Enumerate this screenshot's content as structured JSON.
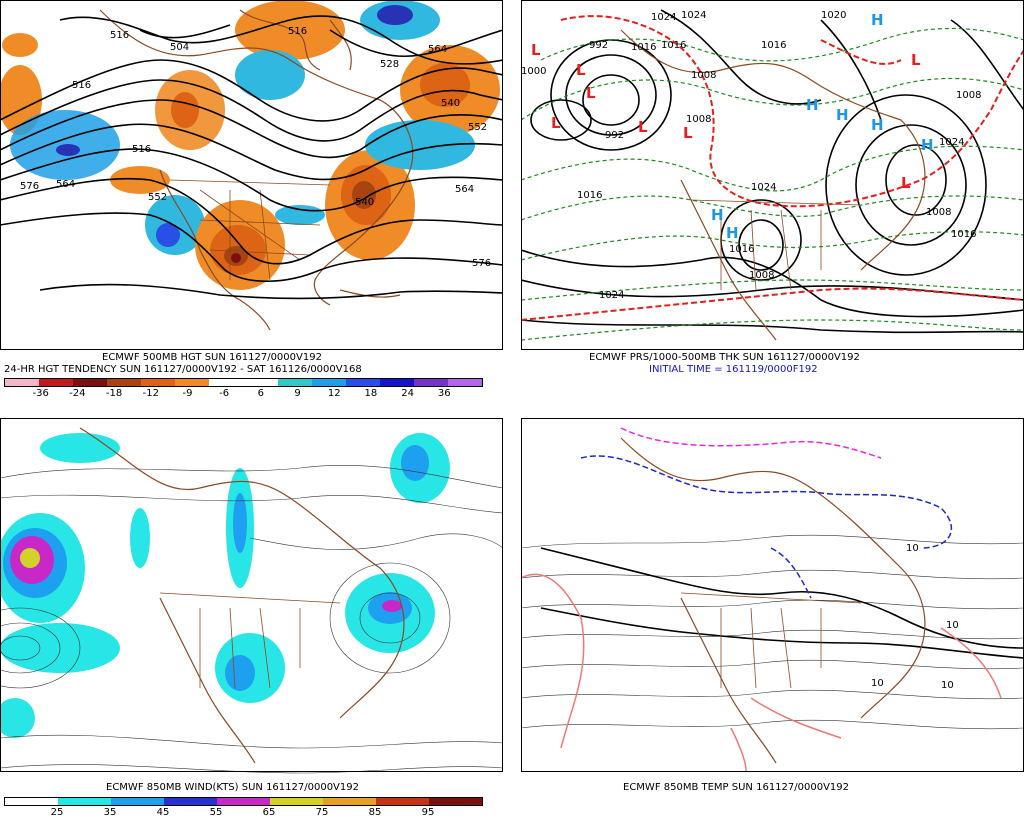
{
  "panels": {
    "hgt": {
      "caption_line1": "ECMWF 500MB HGT SUN 161127/0000V192",
      "caption_line2": "24-HR HGT TENDENCY SUN 161127/0000V192 - SAT 161126/0000V168",
      "contour_labels": [
        "516",
        "504",
        "516",
        "516",
        "528",
        "564",
        "540",
        "552",
        "516",
        "576",
        "564",
        "552",
        "540",
        "564",
        "576"
      ],
      "colorbar": {
        "colors": [
          "#f7b6c8",
          "#c01a1a",
          "#7a1010",
          "#a84410",
          "#dc6414",
          "#f08c28",
          "#ffffff",
          "#ffffff",
          "#30c8c8",
          "#1ea0e6",
          "#2850e6",
          "#1414c8",
          "#7832c8",
          "#b464e6"
        ],
        "labels": [
          "-36",
          "-24",
          "-18",
          "-12",
          "-9",
          "-6",
          "6",
          "9",
          "12",
          "18",
          "24",
          "36"
        ]
      }
    },
    "prs": {
      "caption_line1": "ECMWF PRS/1000-500MB THK SUN 161127/0000V192",
      "caption_line2": "INITIAL TIME = 161119/0000F192",
      "isobar_labels": [
        "1024",
        "1016",
        "992",
        "1008",
        "1000",
        "992",
        "1016",
        "1024",
        "1016",
        "1024",
        "1008",
        "1016",
        "1024",
        "1024",
        "1008",
        "1016",
        "1008",
        "1008",
        "1016",
        "1020"
      ],
      "low_symbol": "L",
      "high_symbol": "H"
    },
    "wind": {
      "caption": "ECMWF 850MB WIND(KTS) SUN 161127/0000V192",
      "colorbar": {
        "colors": [
          "#ffffff",
          "#28e6e6",
          "#1ea0f0",
          "#2832d2",
          "#c828c8",
          "#d2d228",
          "#e6a028",
          "#c83214",
          "#7a1010"
        ],
        "labels": [
          "25",
          "35",
          "45",
          "55",
          "65",
          "75",
          "85",
          "95"
        ]
      }
    },
    "temp": {
      "caption": "ECMWF 850MB TEMP SUN 161127/0000V192",
      "contour_labels": [
        "10",
        "10",
        "10",
        "10"
      ]
    }
  }
}
